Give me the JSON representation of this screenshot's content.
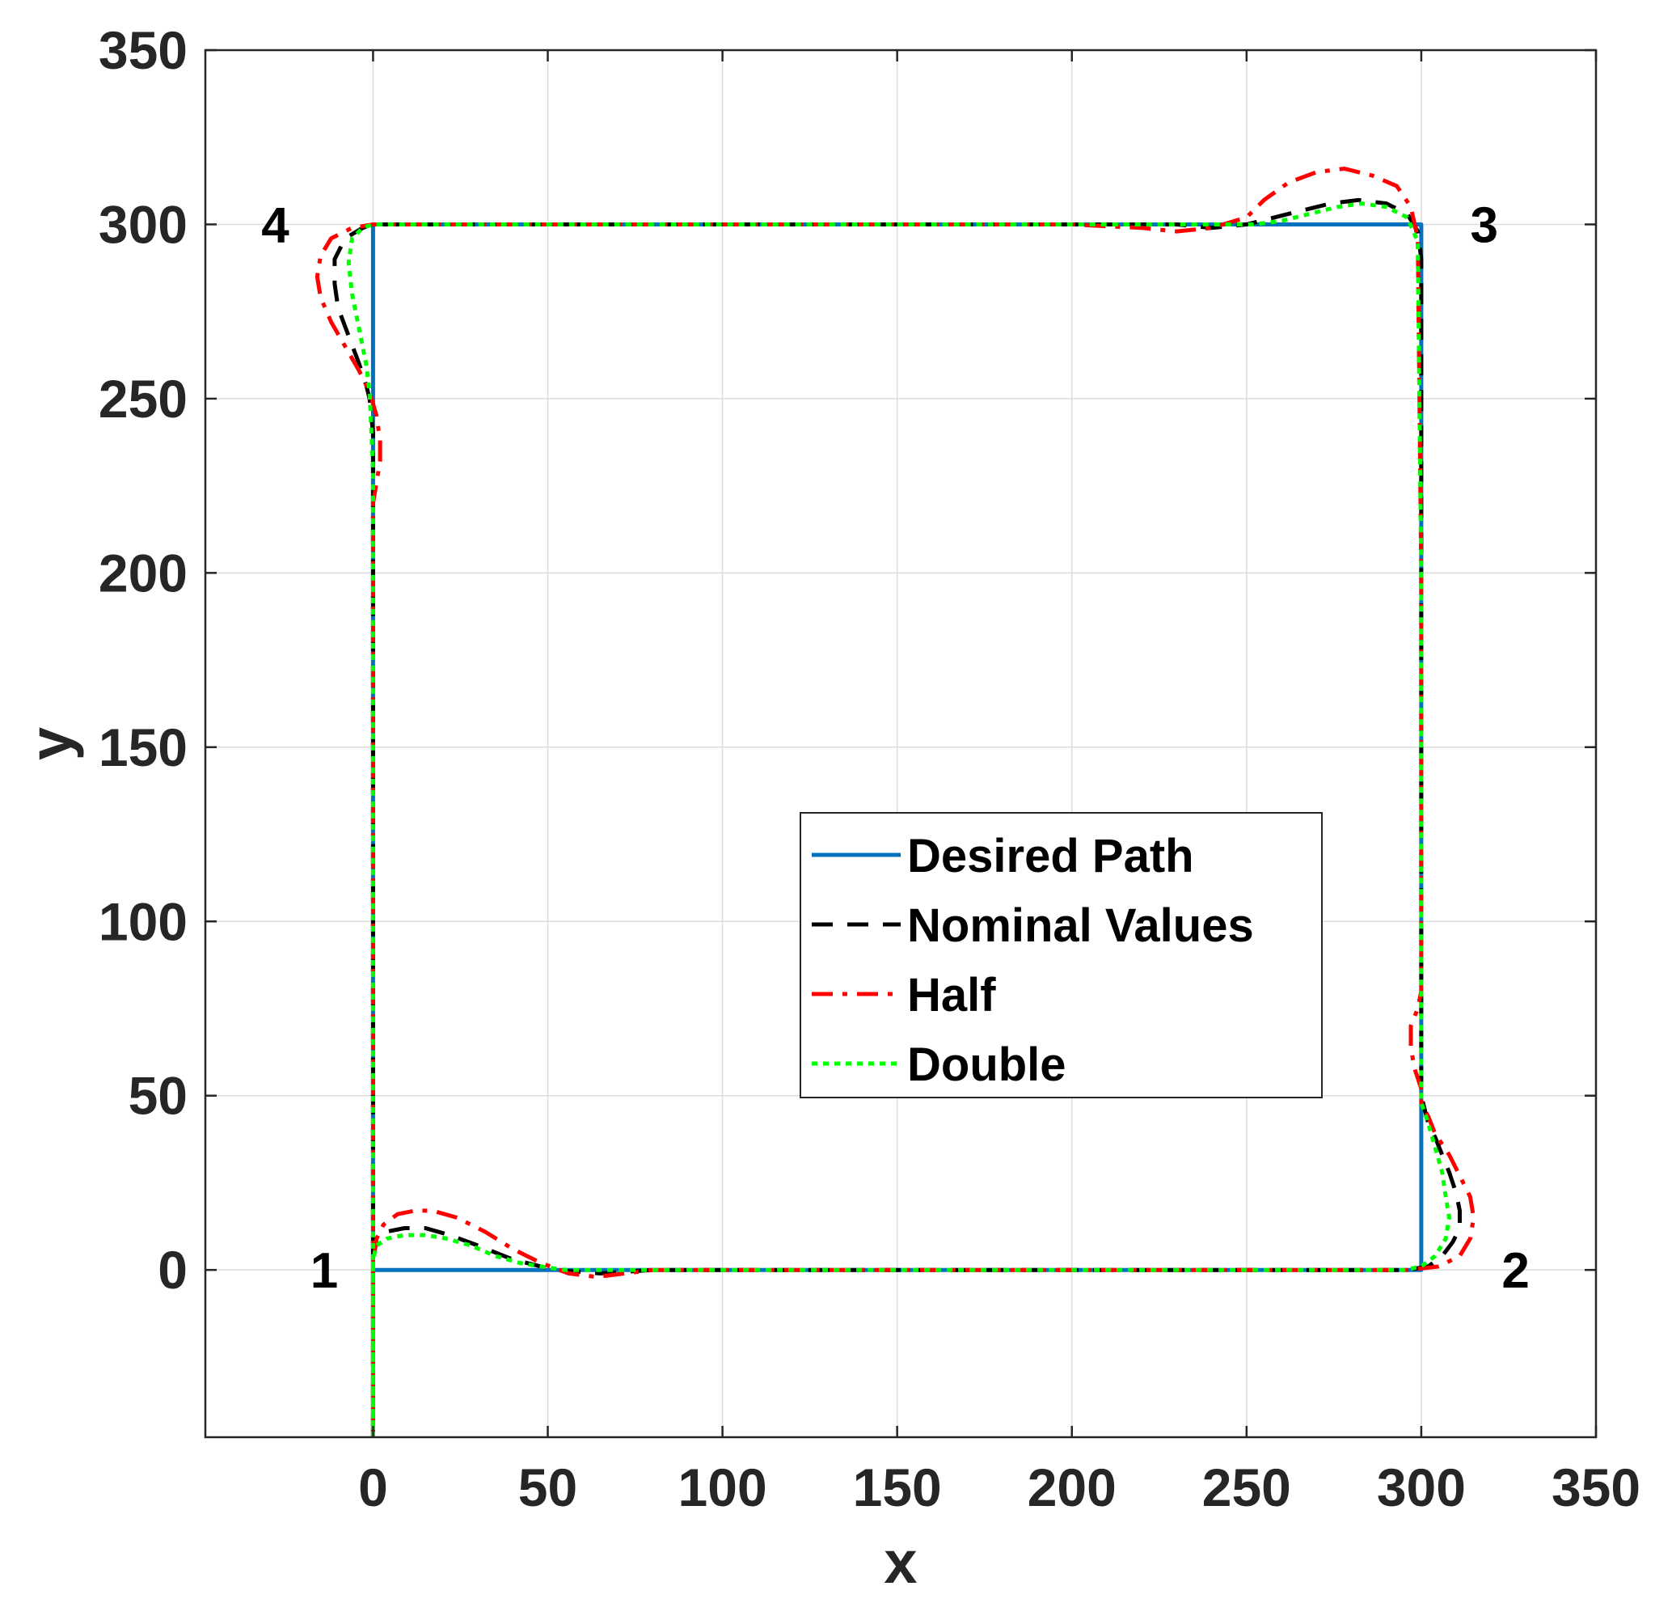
{
  "chart_data": {
    "type": "line",
    "xlabel": "x",
    "ylabel": "y",
    "xlim": [
      -48,
      350
    ],
    "ylim": [
      -48,
      350
    ],
    "xticks": [
      0,
      50,
      100,
      150,
      200,
      250,
      300,
      350
    ],
    "yticks": [
      0,
      50,
      100,
      150,
      200,
      250,
      300,
      350
    ],
    "grid": true,
    "legend_position": "center-right",
    "corner_labels": [
      {
        "text": "1",
        "x": -14,
        "y": 0
      },
      {
        "text": "2",
        "x": 327,
        "y": 0
      },
      {
        "text": "3",
        "x": 318,
        "y": 300
      },
      {
        "text": "4",
        "x": -28,
        "y": 300
      }
    ],
    "series": [
      {
        "name": "Desired Path",
        "color": "#0072BD",
        "dash": "solid",
        "x": [
          0,
          0,
          300,
          300,
          0,
          0
        ],
        "y": [
          -48,
          0,
          0,
          300,
          300,
          -48
        ]
      },
      {
        "name": "Nominal Values",
        "color": "#000000",
        "dash": "dashed",
        "x": [
          0,
          0,
          0,
          1,
          4,
          9,
          15,
          22,
          30,
          40,
          52,
          65,
          80,
          100,
          200,
          296,
          302,
          306,
          309,
          311,
          311,
          310,
          308,
          306,
          304,
          302,
          301,
          300,
          300,
          300,
          300,
          300,
          299,
          296,
          290,
          282,
          274,
          266,
          258,
          250,
          240,
          230,
          200,
          100,
          0,
          -3,
          -8,
          -11,
          -11,
          -10,
          -7,
          -4,
          -2,
          -1,
          0,
          0,
          0,
          0
        ],
        "y": [
          -48,
          0,
          5,
          9,
          11,
          12,
          12,
          10,
          7,
          3,
          0,
          -1,
          0,
          0,
          0,
          0,
          1,
          4,
          8,
          12,
          17,
          22,
          28,
          33,
          38,
          42,
          46,
          50,
          60,
          80,
          200,
          290,
          298,
          303,
          306,
          307,
          306,
          304,
          302,
          300,
          299,
          300,
          300,
          300,
          300,
          299,
          296,
          290,
          283,
          276,
          268,
          260,
          254,
          250,
          240,
          220,
          100,
          -48
        ]
      },
      {
        "name": "Half",
        "color": "#FF0000",
        "dash": "dashdot",
        "x": [
          0,
          0,
          1,
          3,
          7,
          12,
          17,
          24,
          32,
          40,
          48,
          56,
          64,
          72,
          80,
          100,
          200,
          296,
          305,
          311,
          314,
          315,
          314,
          311,
          308,
          304,
          302,
          300,
          300,
          298,
          297,
          297,
          299,
          300,
          300,
          299,
          297,
          293,
          286,
          278,
          270,
          262,
          255,
          250,
          240,
          230,
          220,
          200,
          100,
          0,
          -6,
          -12,
          -15,
          -16,
          -15,
          -12,
          -8,
          -4,
          -1,
          1,
          2,
          2,
          1,
          0,
          0,
          0
        ],
        "y": [
          -48,
          2,
          9,
          13,
          16,
          17,
          17,
          15,
          11,
          6,
          2,
          -1,
          -2,
          -1,
          0,
          0,
          0,
          0,
          1,
          4,
          9,
          15,
          21,
          27,
          33,
          39,
          44,
          48,
          52,
          58,
          64,
          70,
          75,
          80,
          200,
          296,
          305,
          311,
          314,
          316,
          315,
          312,
          307,
          302,
          299,
          298,
          299,
          300,
          300,
          300,
          299,
          296,
          291,
          285,
          279,
          272,
          265,
          258,
          252,
          245,
          238,
          232,
          226,
          220,
          100,
          -48
        ]
      },
      {
        "name": "Double",
        "color": "#00FF00",
        "dash": "dotted",
        "x": [
          0,
          0,
          1,
          4,
          9,
          15,
          21,
          28,
          35,
          42,
          48,
          55,
          65,
          80,
          100,
          200,
          295,
          300,
          304,
          307,
          308,
          307,
          306,
          304,
          302,
          300,
          300,
          300,
          300,
          299,
          296,
          290,
          283,
          276,
          268,
          260,
          252,
          245,
          240,
          200,
          100,
          0,
          -3,
          -6,
          -7,
          -6,
          -4,
          -2,
          -1,
          0,
          0,
          0
        ],
        "y": [
          -48,
          3,
          7,
          9,
          10,
          10,
          9,
          7,
          4,
          2,
          1,
          0,
          0,
          0,
          0,
          0,
          0,
          1,
          4,
          9,
          15,
          21,
          28,
          35,
          42,
          48,
          60,
          80,
          200,
          295,
          302,
          305,
          306,
          305,
          303,
          301,
          300,
          300,
          300,
          300,
          300,
          300,
          299,
          296,
          289,
          280,
          270,
          260,
          252,
          230,
          100,
          -48
        ]
      }
    ]
  }
}
